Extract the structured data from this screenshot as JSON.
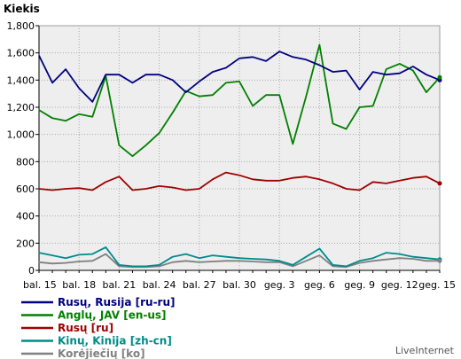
{
  "chart_data": {
    "type": "line",
    "ylabel": "Kiekis",
    "ylim": [
      0,
      1800
    ],
    "yticks": [
      0,
      200,
      400,
      600,
      800,
      "1,000",
      "1,200",
      "1,400",
      "1,600",
      "1,800"
    ],
    "ytick_values": [
      0,
      200,
      400,
      600,
      800,
      1000,
      1200,
      1400,
      1600,
      1800
    ],
    "x": [
      "bal. 15",
      "bal. 16",
      "bal. 17",
      "bal. 18",
      "bal. 19",
      "bal. 20",
      "bal. 21",
      "bal. 22",
      "bal. 23",
      "bal. 24",
      "bal. 25",
      "bal. 26",
      "bal. 27",
      "bal. 28",
      "bal. 29",
      "bal. 30",
      "geg. 1",
      "geg. 2",
      "geg. 3",
      "geg. 4",
      "geg. 5",
      "geg. 6",
      "geg. 7",
      "geg. 8",
      "geg. 9",
      "geg. 10",
      "geg. 11",
      "geg. 12",
      "geg. 13",
      "geg. 14",
      "geg. 15"
    ],
    "xtick_labels": [
      "bal. 15",
      "bal. 18",
      "bal. 21",
      "bal. 24",
      "bal. 27",
      "bal. 30",
      "geg. 3",
      "geg. 6",
      "geg. 9",
      "geg. 12",
      "geg. 15"
    ],
    "xtick_indices": [
      0,
      3,
      6,
      9,
      12,
      15,
      18,
      21,
      24,
      27,
      30
    ],
    "grid": true,
    "legend_position": "bottom",
    "series": [
      {
        "name": "Rusų, Rusija [ru-ru]",
        "color": "#000080",
        "values": [
          1580,
          1380,
          1480,
          1340,
          1240,
          1440,
          1440,
          1380,
          1440,
          1440,
          1400,
          1310,
          1390,
          1460,
          1490,
          1560,
          1570,
          1540,
          1610,
          1570,
          1550,
          1510,
          1460,
          1470,
          1330,
          1460,
          1440,
          1450,
          1500,
          1440,
          1400
        ]
      },
      {
        "name": "Anglų, JAV [en-us]",
        "color": "#008000",
        "values": [
          1180,
          1120,
          1100,
          1150,
          1130,
          1430,
          920,
          840,
          920,
          1010,
          1160,
          1320,
          1280,
          1290,
          1380,
          1390,
          1210,
          1290,
          1290,
          930,
          1280,
          1660,
          1080,
          1040,
          1200,
          1210,
          1480,
          1520,
          1470,
          1310,
          1420
        ]
      },
      {
        "name": "Rusų [ru]",
        "color": "#a00000",
        "values": [
          600,
          590,
          600,
          605,
          590,
          650,
          690,
          590,
          600,
          620,
          610,
          590,
          600,
          670,
          720,
          700,
          670,
          660,
          660,
          680,
          690,
          670,
          640,
          600,
          590,
          650,
          640,
          660,
          680,
          690,
          640
        ]
      },
      {
        "name": "Kinų, Kinija [zh-cn]",
        "color": "#008b8b",
        "values": [
          130,
          110,
          90,
          115,
          120,
          170,
          40,
          30,
          30,
          40,
          100,
          120,
          90,
          110,
          100,
          90,
          85,
          80,
          70,
          40,
          100,
          160,
          40,
          30,
          70,
          90,
          130,
          120,
          100,
          90,
          80
        ]
      },
      {
        "name": "Korėjiečių [ko]",
        "color": "#808080",
        "values": [
          60,
          50,
          55,
          65,
          70,
          120,
          30,
          25,
          25,
          30,
          60,
          70,
          60,
          65,
          70,
          70,
          65,
          60,
          60,
          30,
          70,
          110,
          30,
          25,
          55,
          70,
          80,
          90,
          85,
          70,
          70
        ]
      }
    ]
  },
  "brand": {
    "text": "LiveInternet"
  }
}
